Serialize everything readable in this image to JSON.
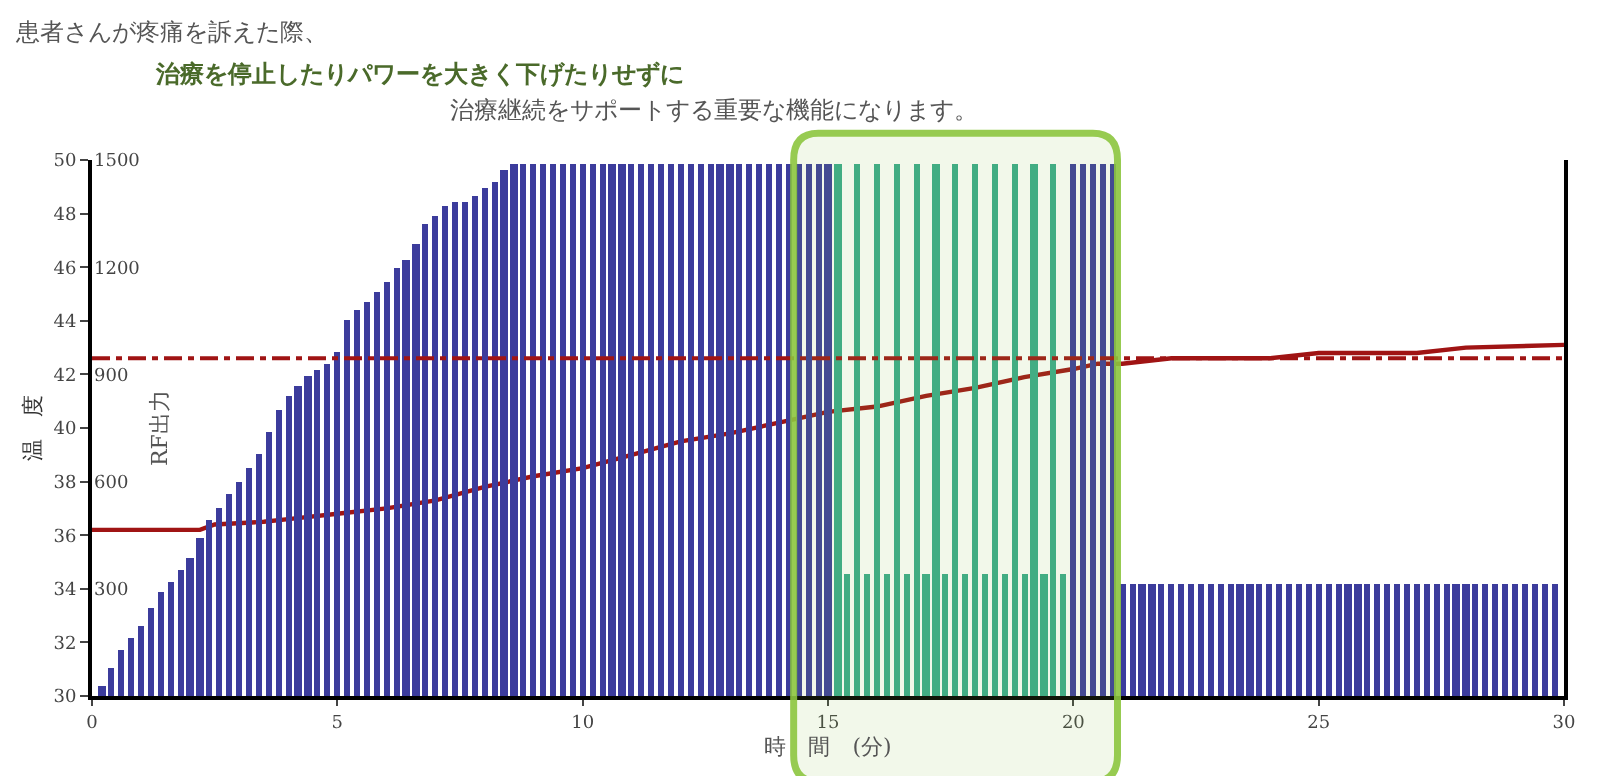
{
  "chart_data": {
    "type": "bar",
    "title": "患者さんが疼痛を訴えた際、",
    "subtitle": "治療を停止したりパワーを大きく下げたりせずに",
    "annotations": [
      "治療継続をサポートする重要な機能になります。"
    ],
    "xlabel": "時　間　(分)",
    "ylabel": "温　度",
    "y2label": "RF出力",
    "xlim": [
      0,
      30
    ],
    "xticks": [
      0,
      5,
      10,
      15,
      20,
      25,
      30
    ],
    "ylim": [
      30,
      50
    ],
    "yticks": [
      30,
      32,
      34,
      36,
      38,
      40,
      42,
      44,
      46,
      48,
      50
    ],
    "y2lim": [
      0,
      1500
    ],
    "y2ticks": [
      300,
      600,
      900,
      1200,
      1500
    ],
    "series": [
      {
        "axis": "y2",
        "color": "#3c3c9c",
        "x": [
          0.2,
          0.4,
          0.6,
          0.8,
          1,
          1.2,
          1.4,
          1.6,
          1.8,
          2,
          2.2,
          2.4,
          2.6,
          2.8,
          3,
          3.2,
          3.4,
          3.6,
          3.8,
          4,
          4.2,
          4.4,
          4.6,
          4.8,
          5,
          5.2,
          5.4,
          5.6,
          5.8,
          6,
          6.2,
          6.4,
          6.6,
          6.8,
          7,
          7.2,
          7.4,
          7.6,
          7.8,
          8,
          8.2,
          8.4,
          8.6,
          8.8,
          9,
          9.2,
          9.4,
          9.6,
          9.8,
          10,
          10.2,
          10.4,
          10.6,
          10.8,
          11,
          11.2,
          11.4,
          11.6,
          11.8,
          12,
          12.2,
          12.4,
          12.6,
          12.8,
          13,
          13.2,
          13.4,
          13.6,
          13.8,
          14,
          14.2,
          14.4,
          14.6,
          14.8,
          15,
          20,
          20.2,
          20.4,
          20.6,
          20.8,
          21,
          21.2,
          21.4,
          21.6,
          21.8,
          22,
          22.2,
          22.4,
          22.6,
          22.8,
          23,
          23.2,
          23.4,
          23.6,
          23.8,
          24,
          24.2,
          24.4,
          24.6,
          24.8,
          25,
          25.2,
          25.4,
          25.6,
          25.8,
          26,
          26.2,
          26.4,
          26.6,
          26.8,
          27,
          27.2,
          27.4,
          27.6,
          27.8,
          28,
          28.2,
          28.4,
          28.6,
          28.8,
          29,
          29.2,
          29.4,
          29.6,
          29.8
        ],
        "values": [
          30,
          80,
          130,
          160,
          195,
          245,
          290,
          320,
          350,
          385,
          440,
          490,
          525,
          565,
          600,
          640,
          675,
          740,
          800,
          840,
          870,
          895,
          915,
          930,
          960,
          1055,
          1080,
          1105,
          1130,
          1160,
          1195,
          1220,
          1265,
          1320,
          1345,
          1370,
          1380,
          1385,
          1400,
          1420,
          1440,
          1470,
          1490,
          1490,
          1490,
          1490,
          1490,
          1490,
          1490,
          1490,
          1490,
          1490,
          1490,
          1490,
          1490,
          1490,
          1490,
          1490,
          1490,
          1490,
          1490,
          1490,
          1490,
          1490,
          1490,
          1490,
          1490,
          1490,
          1490,
          1490,
          1490,
          1490,
          1490,
          1490,
          1490,
          1490,
          1490,
          1490,
          1490,
          1490,
          315,
          315,
          315,
          315,
          315,
          315,
          315,
          315,
          315,
          315,
          315,
          315,
          315,
          315,
          315,
          315,
          315,
          315,
          315,
          315,
          315,
          315,
          315,
          315,
          315,
          315,
          315,
          315,
          315,
          315,
          315,
          315,
          315,
          315,
          315,
          315,
          315,
          315,
          315,
          315,
          315,
          315,
          315,
          315,
          315
        ]
      },
      {
        "axis": "y2",
        "color": "#3aaa8c",
        "x": [
          15.2,
          15.4,
          15.6,
          15.8,
          16,
          16.2,
          16.4,
          16.6,
          16.8,
          17,
          17.2,
          17.4,
          17.6,
          17.8,
          18,
          18.2,
          18.4,
          18.6,
          18.8,
          19,
          19.2,
          19.4,
          19.6,
          19.8
        ],
        "values": [
          1490,
          340,
          1490,
          340,
          1490,
          340,
          1490,
          340,
          1490,
          340,
          1490,
          340,
          1490,
          340,
          1490,
          340,
          1490,
          340,
          1490,
          340,
          1490,
          340,
          1490,
          340
        ]
      },
      {
        "type": "line",
        "axis": "y",
        "color": "#a01414",
        "x": [
          0,
          1,
          2.2,
          2.5,
          3.5,
          4,
          5,
          6,
          7,
          8,
          9,
          10,
          11,
          12,
          13,
          14,
          15,
          16,
          17,
          18,
          19,
          20,
          20.5,
          21,
          22,
          24,
          25,
          27,
          28,
          30
        ],
        "values": [
          36.2,
          36.2,
          36.2,
          36.4,
          36.5,
          36.6,
          36.8,
          37,
          37.3,
          37.8,
          38.2,
          38.5,
          39.0,
          39.5,
          39.8,
          40.2,
          40.6,
          40.8,
          41.2,
          41.5,
          41.9,
          42.2,
          42.4,
          42.4,
          42.6,
          42.6,
          42.8,
          42.8,
          43,
          43.1
        ]
      }
    ],
    "ref_lines": [
      {
        "axis": "y",
        "value": 42.6,
        "color": "#a01414",
        "line_style": "dashdot"
      }
    ],
    "bands": [
      {
        "axis": "x",
        "from": 14.3,
        "to": 20.9,
        "color": "#8cc63f"
      }
    ]
  }
}
